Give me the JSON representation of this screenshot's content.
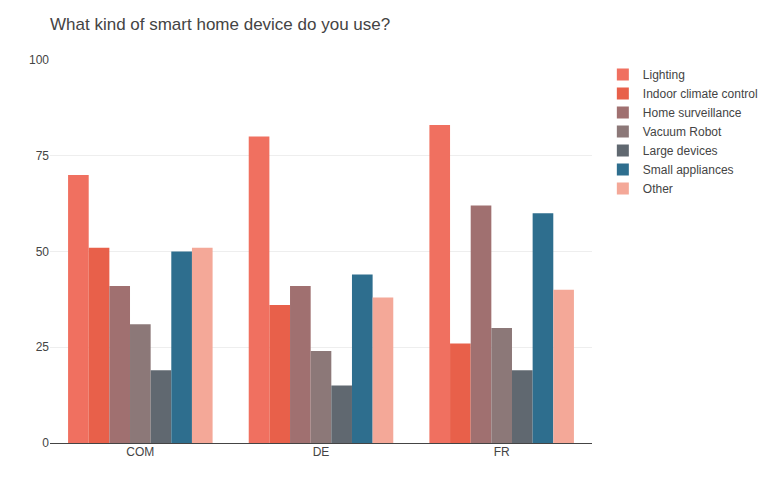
{
  "chart_data": {
    "type": "bar",
    "title": "What kind of smart home device do you use?",
    "categories": [
      "COM",
      "DE",
      "FR"
    ],
    "series": [
      {
        "name": "Lighting",
        "color": "#F07060",
        "values": [
          70,
          80,
          83
        ]
      },
      {
        "name": "Indoor climate control",
        "color": "#E8604A",
        "values": [
          51,
          36,
          26
        ]
      },
      {
        "name": "Home surveillance",
        "color": "#A07070",
        "values": [
          41,
          41,
          62
        ]
      },
      {
        "name": "Vacuum Robot",
        "color": "#8C7878",
        "values": [
          31,
          24,
          30
        ]
      },
      {
        "name": "Large devices",
        "color": "#606870",
        "values": [
          19,
          15,
          19
        ]
      },
      {
        "name": "Small appliances",
        "color": "#2E6E8E",
        "values": [
          50,
          44,
          60
        ]
      },
      {
        "name": "Other",
        "color": "#F4A898",
        "values": [
          51,
          38,
          40
        ]
      }
    ],
    "ylim": [
      0,
      100
    ],
    "yticks": [
      0,
      25,
      50,
      75,
      100
    ],
    "grid": true,
    "legend": "right"
  }
}
